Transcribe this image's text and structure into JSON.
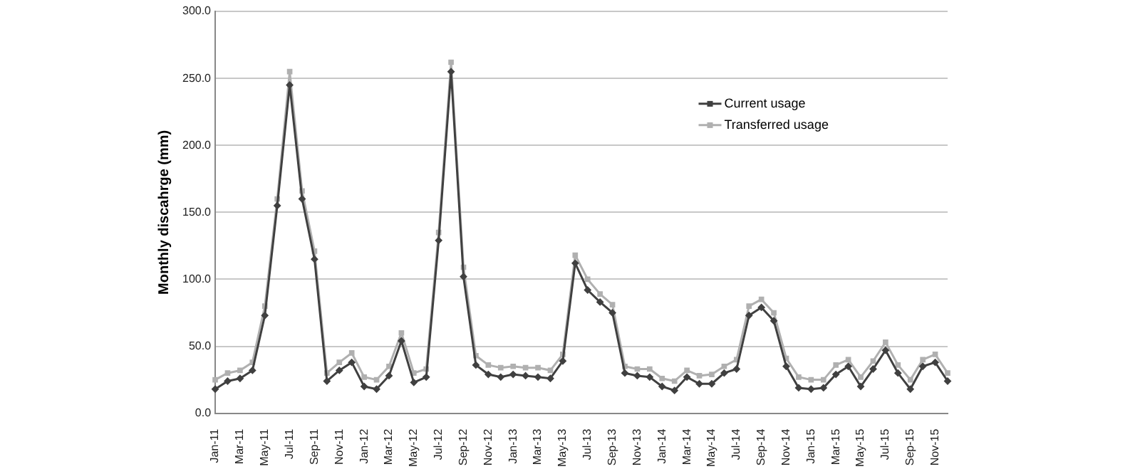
{
  "chart_data": {
    "type": "line",
    "ylabel": "Monthly discahrge (mm)",
    "categories": [
      "Jan-11",
      null,
      "Mar-11",
      null,
      "May-11",
      null,
      "Jul-11",
      null,
      "Sep-11",
      null,
      "Nov-11",
      null,
      "Jan-12",
      null,
      "Mar-12",
      null,
      "May-12",
      null,
      "Jul-12",
      null,
      "Sep-12",
      null,
      "Nov-12",
      null,
      "Jan-13",
      null,
      "Mar-13",
      null,
      "May-13",
      null,
      "Jul-13",
      null,
      "Sep-13",
      null,
      "Nov-13",
      null,
      "Jan-14",
      null,
      "Mar-14",
      null,
      "May-14",
      null,
      "Jul-14",
      null,
      "Sep-14",
      null,
      "Nov-14",
      null,
      "Jan-15",
      null,
      "Mar-15",
      null,
      "May-15",
      null,
      "Jul-15",
      null,
      "Sep-15",
      null,
      "Nov-15",
      null
    ],
    "series": [
      {
        "name": "Current usage",
        "color": "#404040",
        "marker": "diamond",
        "values": [
          18,
          24,
          26,
          32,
          73,
          155,
          245,
          160,
          115,
          24,
          32,
          38,
          20,
          18,
          28,
          54,
          23,
          27,
          129,
          255,
          102,
          36,
          29,
          27,
          29,
          28,
          27,
          26,
          39,
          112,
          92,
          83,
          75,
          30,
          28,
          27,
          20,
          17,
          27,
          22,
          22,
          30,
          33,
          73,
          79,
          69,
          35,
          19,
          18,
          19,
          29,
          35,
          20,
          33,
          47,
          30,
          18,
          35,
          38,
          24
        ]
      },
      {
        "name": "Transferred usage",
        "color": "#b0b0b0",
        "marker": "square",
        "values": [
          25,
          30,
          32,
          38,
          80,
          160,
          255,
          166,
          121,
          30,
          38,
          45,
          27,
          25,
          35,
          60,
          30,
          33,
          135,
          262,
          109,
          43,
          36,
          34,
          35,
          34,
          34,
          32,
          44,
          118,
          100,
          89,
          81,
          35,
          33,
          33,
          26,
          24,
          32,
          28,
          29,
          35,
          40,
          80,
          85,
          75,
          41,
          27,
          25,
          25,
          36,
          40,
          27,
          39,
          53,
          36,
          25,
          40,
          44,
          30
        ]
      }
    ],
    "ylim": [
      0,
      300
    ],
    "yticks": [
      {
        "value": 0,
        "label": "0.0"
      },
      {
        "value": 50,
        "label": "50.0"
      },
      {
        "value": 100,
        "label": "100.0"
      },
      {
        "value": 150,
        "label": "150.0"
      },
      {
        "value": 200,
        "label": "200.0"
      },
      {
        "value": 250,
        "label": "250.0"
      },
      {
        "value": 300,
        "label": "300.0"
      }
    ],
    "grid": "y",
    "legend": "top right",
    "line_style": "solid"
  }
}
